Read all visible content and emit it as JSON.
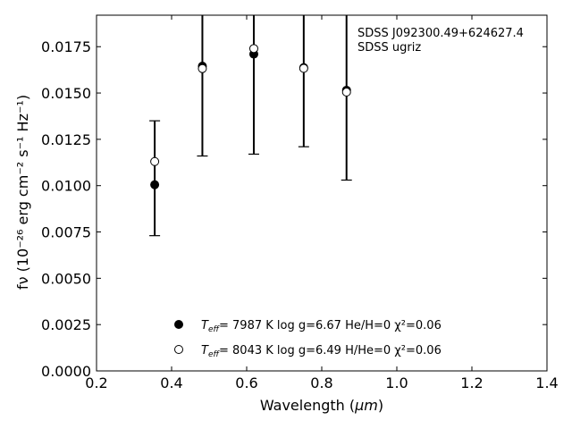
{
  "chart_data": {
    "type": "scatter",
    "xlabel_prefix": "Wavelength (",
    "xlabel_unit": "μm",
    "xlabel_suffix": ")",
    "ylabel": "fν (10⁻²⁶ erg cm⁻² s⁻¹ Hz⁻¹)",
    "xlim": [
      0.2,
      1.4
    ],
    "ylim": [
      0.0,
      0.0192
    ],
    "xticks": [
      0.2,
      0.4,
      0.6,
      0.8,
      1.0,
      1.2,
      1.4
    ],
    "xtick_labels": [
      "0.2",
      "0.4",
      "0.6",
      "0.8",
      "1.0",
      "1.2",
      "1.4"
    ],
    "yticks": [
      0.0,
      0.0025,
      0.005,
      0.0075,
      0.01,
      0.0125,
      0.015,
      0.0175
    ],
    "ytick_labels": [
      "0.0000",
      "0.0025",
      "0.0050",
      "0.0075",
      "0.0100",
      "0.0125",
      "0.0150",
      "0.0175"
    ],
    "annotation_lines": [
      "SDSS J092300.49+624627.4",
      "SDSS ugriz"
    ],
    "errorbars": [
      {
        "x": 0.355,
        "low": 0.0073,
        "high": 0.0135
      },
      {
        "x": 0.482,
        "low": 0.0116,
        "high": 0.0215
      },
      {
        "x": 0.619,
        "low": 0.0117,
        "high": 0.0225
      },
      {
        "x": 0.752,
        "low": 0.0121,
        "high": 0.0205
      },
      {
        "x": 0.866,
        "low": 0.0103,
        "high": 0.02
      }
    ],
    "series": [
      {
        "style": "filled",
        "legend": {
          "teff_label": "T",
          "teff_sub": "eff",
          "text": "=  7987 K  log g=6.67  He/H=0  χ²=0.06"
        },
        "points": [
          {
            "x": 0.355,
            "y": 0.01005
          },
          {
            "x": 0.482,
            "y": 0.01645
          },
          {
            "x": 0.619,
            "y": 0.0171
          },
          {
            "x": 0.752,
            "y": 0.01637
          },
          {
            "x": 0.866,
            "y": 0.01515
          }
        ]
      },
      {
        "style": "open",
        "legend": {
          "teff_label": "T",
          "teff_sub": "eff",
          "text": "=  8043 K  log g=6.49  H/He=0  χ²=0.06"
        },
        "points": [
          {
            "x": 0.355,
            "y": 0.0113
          },
          {
            "x": 0.482,
            "y": 0.01632
          },
          {
            "x": 0.619,
            "y": 0.0174
          },
          {
            "x": 0.752,
            "y": 0.01633
          },
          {
            "x": 0.866,
            "y": 0.01505
          }
        ]
      }
    ]
  }
}
